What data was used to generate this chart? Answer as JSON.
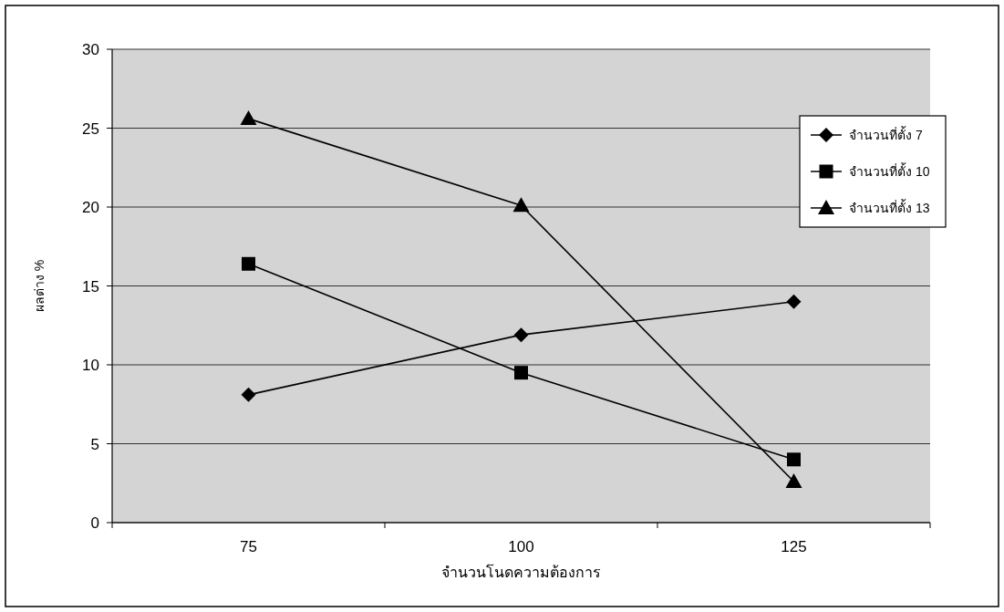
{
  "chart_data": {
    "type": "line",
    "xlabel": "จำนวนโนดความต้องการ",
    "ylabel": "ผลต่าง %",
    "categories": [
      "75",
      "100",
      "125"
    ],
    "series": [
      {
        "name": "จำนวนที่ตั้ง 7",
        "color": "#000000",
        "marker": "diamond",
        "values": [
          8.1,
          11.9,
          14.0
        ]
      },
      {
        "name": "จำนวนที่ตั้ง 10",
        "color": "#000000",
        "marker": "square",
        "values": [
          16.4,
          9.5,
          4.0
        ]
      },
      {
        "name": "จำนวนที่ตั้ง 13",
        "color": "#000000",
        "marker": "triangle",
        "values": [
          25.6,
          20.1,
          2.6
        ]
      }
    ],
    "ylim": [
      0,
      30
    ],
    "yticks": [
      0,
      5,
      10,
      15,
      20,
      25,
      30
    ],
    "grid": "y",
    "legend": "top right",
    "line_style": "solid"
  }
}
